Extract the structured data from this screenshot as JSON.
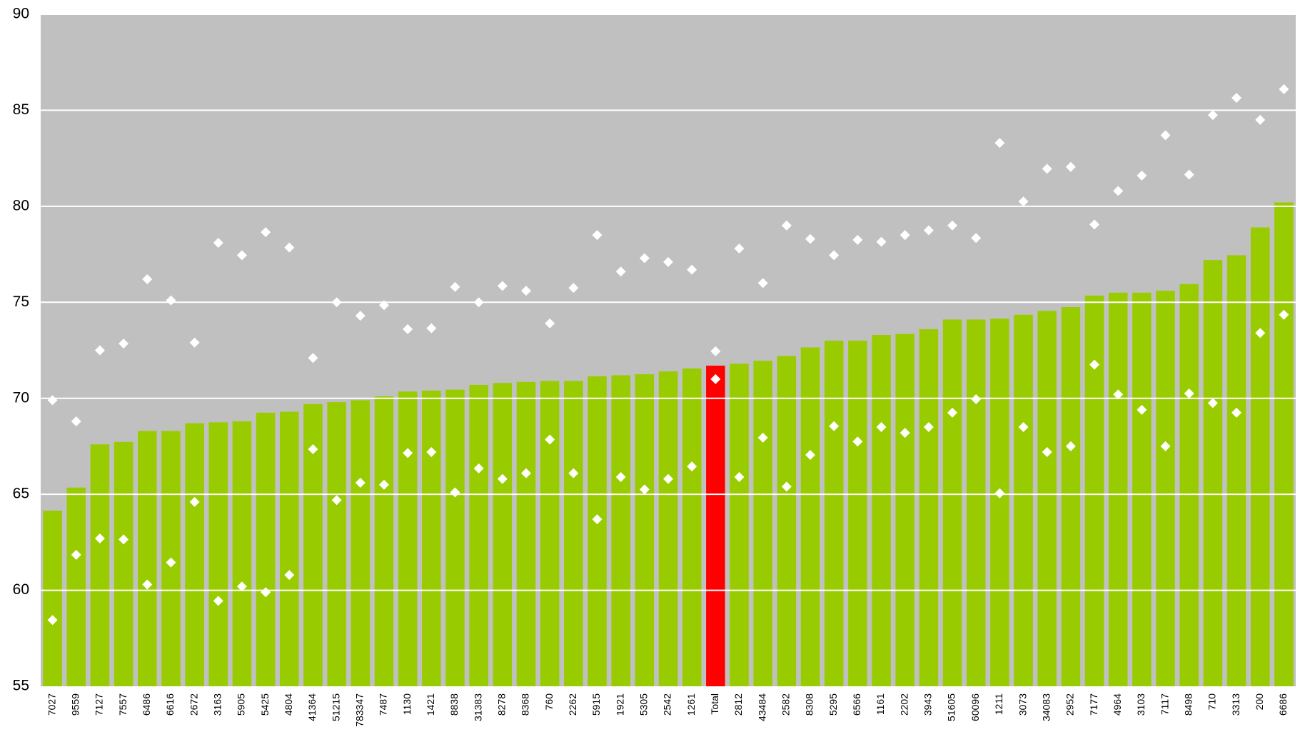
{
  "chart_data": {
    "type": "bar",
    "categories": [
      "7027",
      "9559",
      "7127",
      "7557",
      "6486",
      "6616",
      "2672",
      "3163",
      "5905",
      "5425",
      "4804",
      "41364",
      "51215",
      "783347",
      "7487",
      "1130",
      "1421",
      "8838",
      "31383",
      "8278",
      "8368",
      "760",
      "2262",
      "5915",
      "1921",
      "5305",
      "2542",
      "1261",
      "Total",
      "2812",
      "43484",
      "2582",
      "8308",
      "5295",
      "6566",
      "1161",
      "2202",
      "3943",
      "51605",
      "60096",
      "1211",
      "3073",
      "34083",
      "2952",
      "7177",
      "4964",
      "3103",
      "7117",
      "8498",
      "710",
      "3313",
      "200",
      "6686"
    ],
    "values": [
      64.15,
      65.35,
      67.6,
      67.73,
      68.3,
      68.3,
      68.7,
      68.75,
      68.8,
      69.25,
      69.3,
      69.7,
      69.8,
      69.9,
      70.1,
      70.35,
      70.4,
      70.45,
      70.7,
      70.8,
      70.85,
      70.9,
      70.9,
      71.15,
      71.2,
      71.25,
      71.4,
      71.55,
      71.7,
      71.8,
      71.95,
      72.2,
      72.65,
      73.0,
      73.0,
      73.3,
      73.35,
      73.6,
      74.1,
      74.1,
      74.15,
      74.35,
      74.55,
      74.75,
      75.35,
      75.5,
      75.5,
      75.6,
      75.95,
      77.2,
      77.45,
      78.9,
      80.2
    ],
    "colors": [
      "#99cc00",
      "#99cc00",
      "#99cc00",
      "#99cc00",
      "#99cc00",
      "#99cc00",
      "#99cc00",
      "#99cc00",
      "#99cc00",
      "#99cc00",
      "#99cc00",
      "#99cc00",
      "#99cc00",
      "#99cc00",
      "#99cc00",
      "#99cc00",
      "#99cc00",
      "#99cc00",
      "#99cc00",
      "#99cc00",
      "#99cc00",
      "#99cc00",
      "#99cc00",
      "#99cc00",
      "#99cc00",
      "#99cc00",
      "#99cc00",
      "#99cc00",
      "#ff0000",
      "#99cc00",
      "#99cc00",
      "#99cc00",
      "#99cc00",
      "#99cc00",
      "#99cc00",
      "#99cc00",
      "#99cc00",
      "#99cc00",
      "#99cc00",
      "#99cc00",
      "#99cc00",
      "#99cc00",
      "#99cc00",
      "#99cc00",
      "#99cc00",
      "#99cc00",
      "#99cc00",
      "#99cc00",
      "#99cc00",
      "#99cc00",
      "#99cc00",
      "#99cc00",
      "#99cc00"
    ],
    "series": [
      {
        "type": "scatter",
        "color": "#ffffff",
        "values": [
          69.9,
          68.8,
          72.5,
          72.85,
          76.2,
          75.1,
          72.9,
          78.1,
          77.45,
          78.65,
          77.85,
          72.1,
          75.0,
          74.3,
          74.85,
          73.6,
          73.65,
          75.8,
          75.0,
          75.85,
          75.6,
          73.9,
          75.75,
          78.5,
          76.6,
          77.3,
          77.1,
          76.7,
          72.45,
          77.8,
          76.0,
          79.0,
          78.3,
          77.45,
          78.25,
          78.15,
          78.5,
          78.75,
          79.0,
          78.35,
          83.3,
          80.25,
          81.95,
          82.05,
          79.05,
          80.8,
          81.6,
          83.7,
          81.65,
          84.75,
          85.65,
          84.5,
          86.1
        ]
      },
      {
        "type": "scatter",
        "color": "#ffffff",
        "values": [
          58.45,
          61.85,
          62.7,
          62.65,
          60.3,
          61.45,
          64.6,
          59.45,
          60.2,
          59.9,
          60.8,
          67.35,
          64.7,
          65.6,
          65.5,
          67.15,
          67.2,
          65.1,
          66.35,
          65.8,
          66.1,
          67.85,
          66.1,
          63.7,
          65.9,
          65.25,
          65.8,
          66.45,
          71.0,
          65.9,
          67.95,
          65.4,
          67.05,
          68.55,
          67.75,
          68.5,
          68.2,
          68.5,
          69.25,
          69.95,
          65.05,
          68.5,
          67.2,
          67.5,
          71.75,
          70.2,
          69.4,
          67.5,
          70.25,
          69.75,
          69.25,
          73.4,
          74.35
        ]
      }
    ],
    "ylim": [
      55,
      90
    ],
    "yticks": [
      55,
      60,
      65,
      70,
      75,
      80,
      85,
      90
    ],
    "grid": true,
    "grid_color": "#ffffff",
    "plot_background": "#c0c0c0"
  }
}
